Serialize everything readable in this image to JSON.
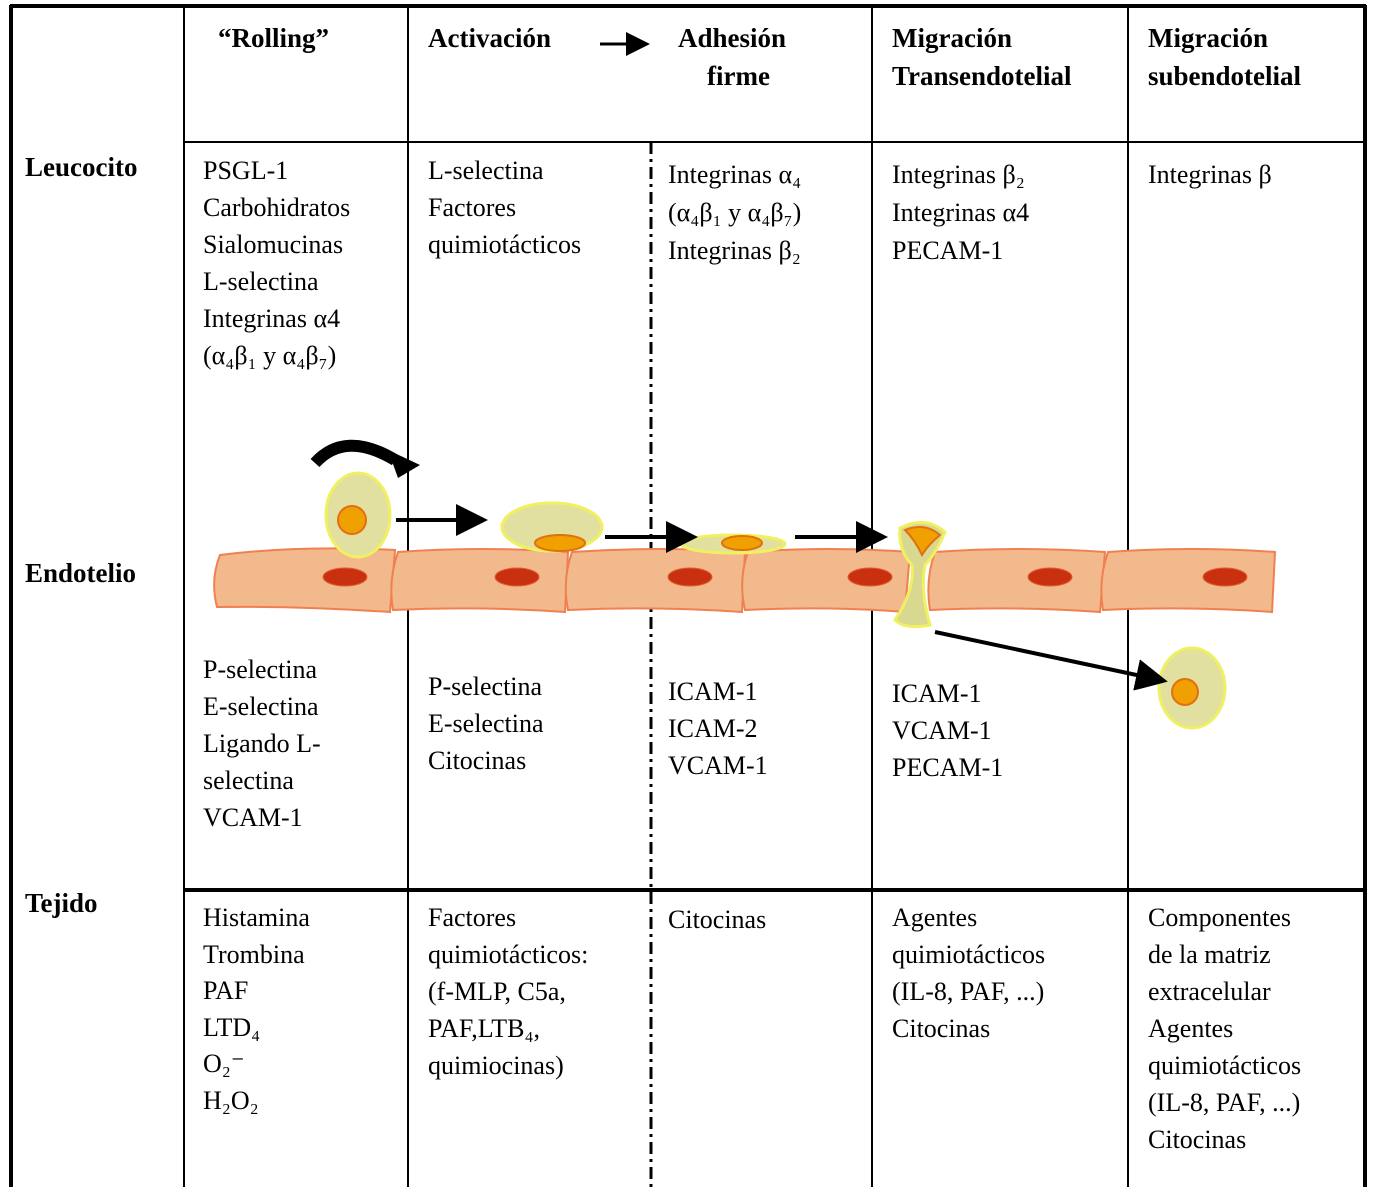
{
  "row_labels": [
    "Leucocito",
    "Endotelio",
    "Tejido"
  ],
  "headers": [
    [
      "“Rolling”"
    ],
    [
      "Activación"
    ],
    [
      "Adhesión",
      "firme"
    ],
    [
      "Migración",
      "Transendotelial"
    ],
    [
      "Migración",
      "subendotelial"
    ]
  ],
  "leucocito": [
    [
      "PSGL-1",
      "Carbohidratos",
      "Sialomucinas",
      "L-selectina",
      "Integrinas α4",
      "(α₄β₁ y α₄β₇)"
    ],
    [
      "L-selectina",
      "Factores",
      "quimiotácticos"
    ],
    [
      "Integrinas α₄",
      "(α₄β₁ y α₄β₇)",
      "Integrinas β₂"
    ],
    [
      "Integrinas β₂",
      "Integrinas α4",
      "PECAM-1"
    ],
    [
      "Integrinas β"
    ]
  ],
  "endotelio": [
    [
      "P-selectina",
      "E-selectina",
      "Ligando L-",
      "selectina",
      "VCAM-1"
    ],
    [
      "P-selectina",
      "E-selectina",
      "Citocinas"
    ],
    [
      "ICAM-1",
      "ICAM-2",
      "VCAM-1"
    ],
    [
      "ICAM-1",
      "VCAM-1",
      "PECAM-1"
    ],
    []
  ],
  "tejido": [
    [
      "Histamina",
      "Trombina",
      "PAF",
      "LTD₄",
      "O₂⁻",
      "H₂O₂"
    ],
    [
      "Factores",
      "quimiotácticos:",
      "(f-MLP, C5a,",
      "PAF,LTB₄,",
      "quimiocinas)"
    ],
    [
      "Citocinas"
    ],
    [
      "Agentes",
      "quimiotácticos",
      "(IL-8, PAF, ...)",
      "Citocinas"
    ],
    [
      "Componentes",
      "de la matriz",
      "extracelular",
      "Agentes",
      "quimiotácticos",
      "(IL-8, PAF, ...)",
      "Citocinas"
    ]
  ]
}
